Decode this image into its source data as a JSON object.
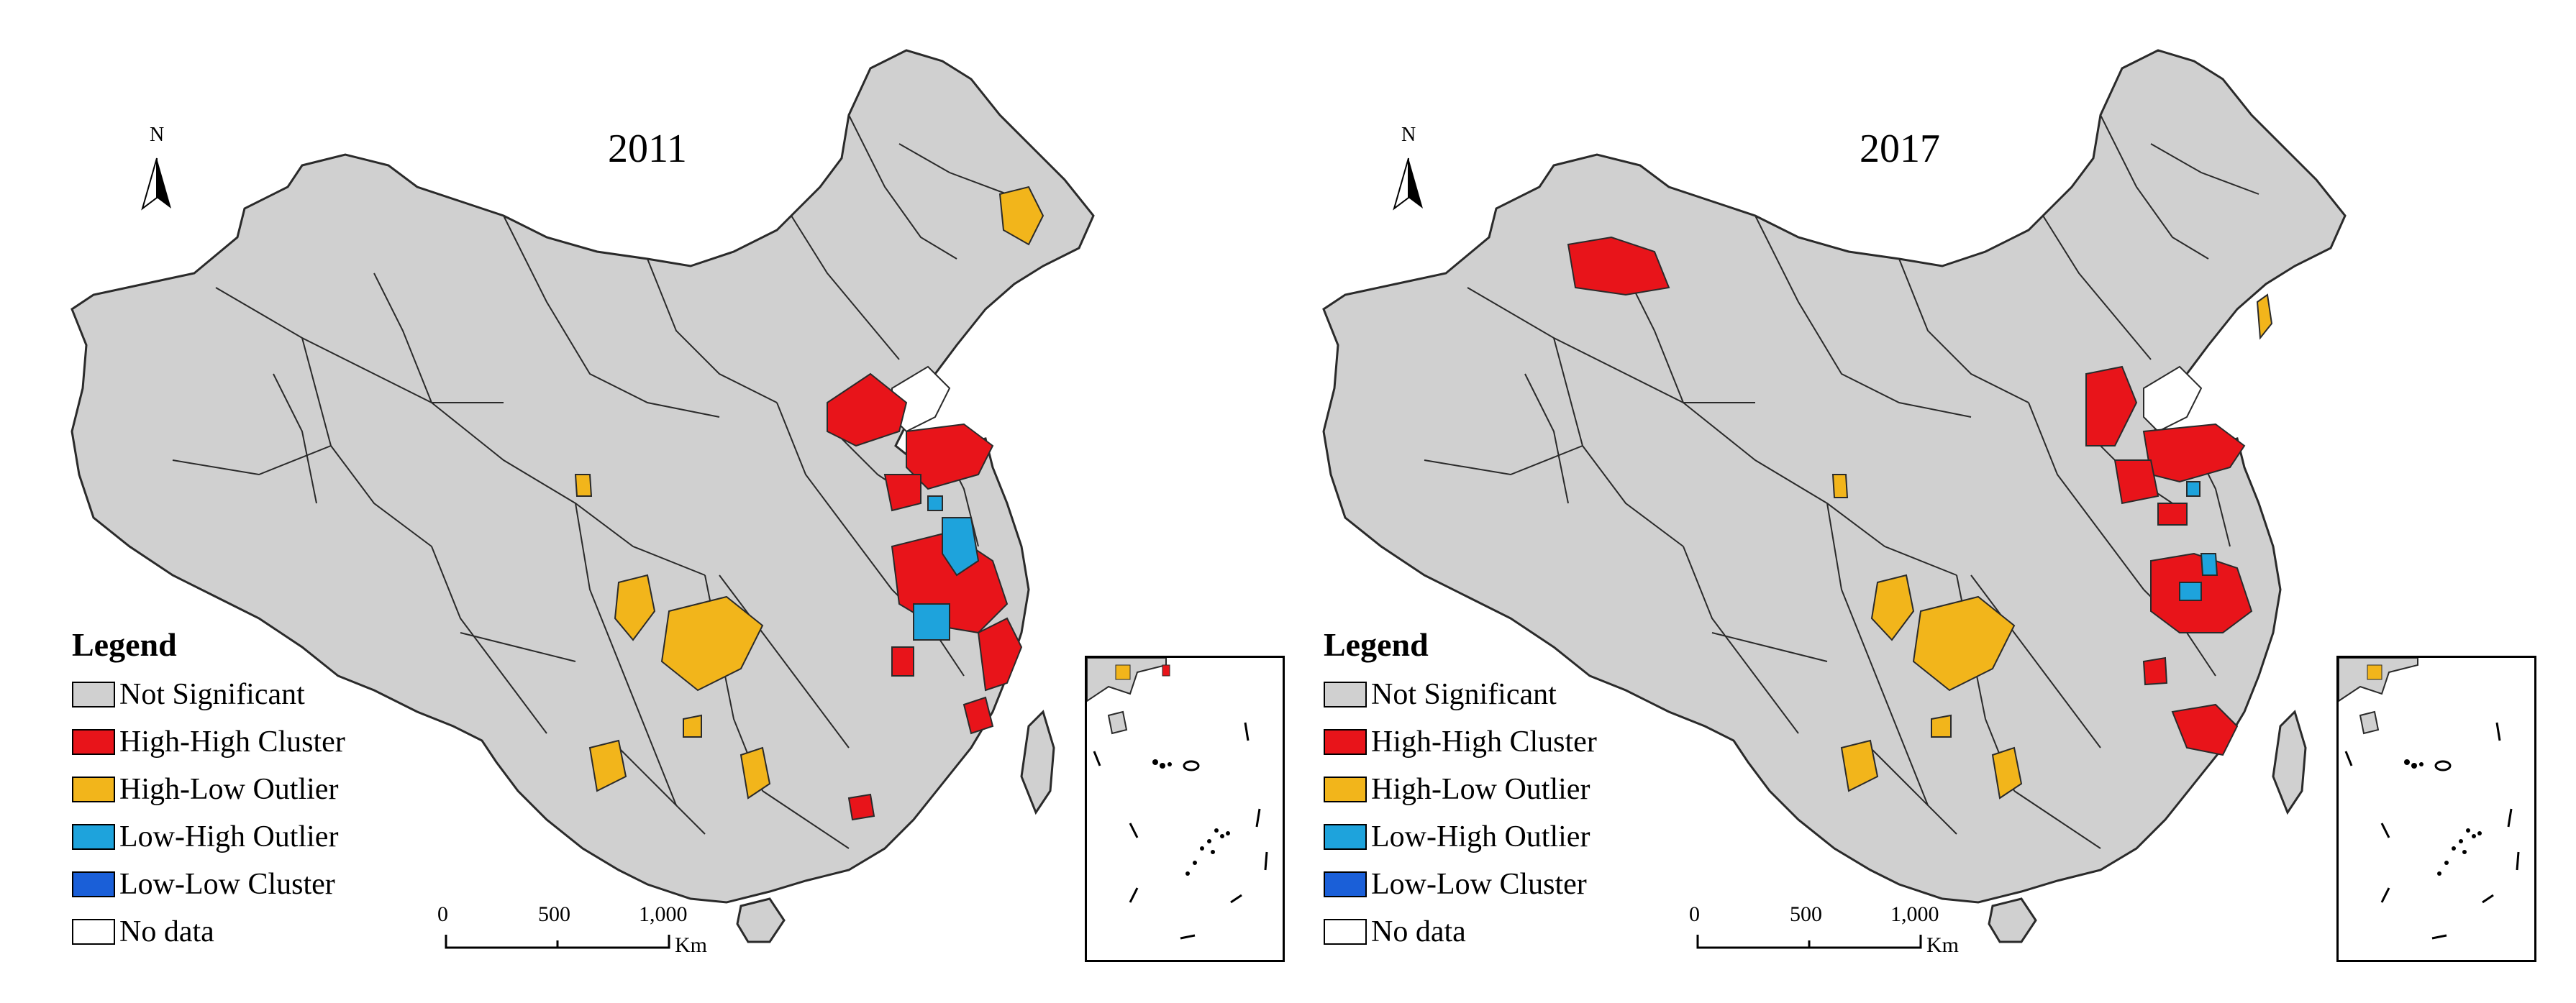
{
  "colors": {
    "not_significant": "#d0d0d0",
    "high_high": "#e8141a",
    "high_low": "#f2b51b",
    "low_high": "#1ea3dc",
    "low_low": "#1a5fd8",
    "no_data": "#ffffff",
    "border": "#2a2a2a"
  },
  "panels": [
    {
      "year": "2011",
      "north": "N"
    },
    {
      "year": "2017",
      "north": "N"
    }
  ],
  "legend": {
    "title": "Legend",
    "items": [
      {
        "label": "Not Significant",
        "color_key": "not_significant"
      },
      {
        "label": "High-High Cluster",
        "color_key": "high_high"
      },
      {
        "label": "High-Low Outlier",
        "color_key": "high_low"
      },
      {
        "label": "Low-High Outlier",
        "color_key": "low_high"
      },
      {
        "label": "Low-Low Cluster",
        "color_key": "low_low"
      },
      {
        "label": "No data",
        "color_key": "no_data"
      }
    ]
  },
  "scale": {
    "ticks": [
      "0",
      "500",
      "1,000"
    ],
    "unit": "Km"
  }
}
